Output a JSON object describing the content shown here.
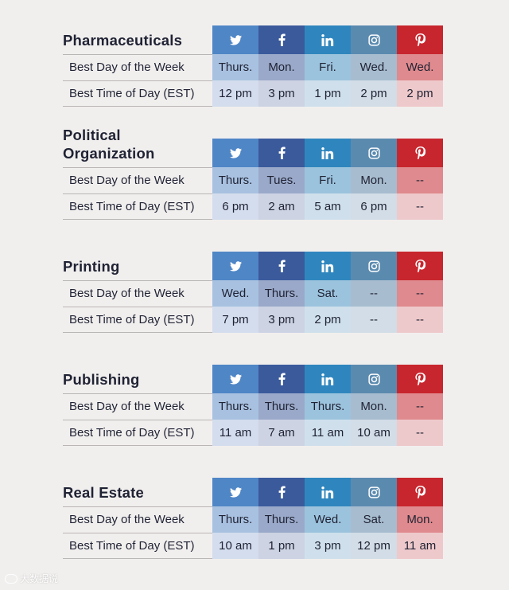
{
  "networks": [
    {
      "icon": "twitter-icon",
      "color": "#4f86c6"
    },
    {
      "icon": "facebook-icon",
      "color": "#3a5a9c"
    },
    {
      "icon": "linkedin-icon",
      "color": "#2f86be"
    },
    {
      "icon": "instagram-icon",
      "color": "#5b8aaf"
    },
    {
      "icon": "pinterest-icon",
      "color": "#c8262e"
    }
  ],
  "row_labels": {
    "day": "Best Day of the Week",
    "time": "Best Time of Day (EST)"
  },
  "sections": [
    {
      "title": "Pharmaceuticals",
      "days": [
        "Thurs.",
        "Mon.",
        "Fri.",
        "Wed.",
        "Wed."
      ],
      "times": [
        "12 pm",
        "3 pm",
        "1 pm",
        "2 pm",
        "2 pm"
      ]
    },
    {
      "title": "Political Organization",
      "days": [
        "Thurs.",
        "Tues.",
        "Fri.",
        "Mon.",
        "--"
      ],
      "times": [
        "6 pm",
        "2 am",
        "5 am",
        "6 pm",
        "--"
      ]
    },
    {
      "title": "Printing",
      "days": [
        "Wed.",
        "Thurs.",
        "Sat.",
        "--",
        "--"
      ],
      "times": [
        "7 pm",
        "3 pm",
        "2 pm",
        "--",
        "--"
      ]
    },
    {
      "title": "Publishing",
      "days": [
        "Thurs.",
        "Thurs.",
        "Thurs.",
        "Mon.",
        "--"
      ],
      "times": [
        "11 am",
        "7 am",
        "11 am",
        "10 am",
        "--"
      ]
    },
    {
      "title": "Real Estate",
      "days": [
        "Thurs.",
        "Thurs.",
        "Wed.",
        "Sat.",
        "Mon."
      ],
      "times": [
        "10 am",
        "1 pm",
        "3 pm",
        "12 pm",
        "11 am"
      ]
    }
  ],
  "watermark": "大数据说"
}
